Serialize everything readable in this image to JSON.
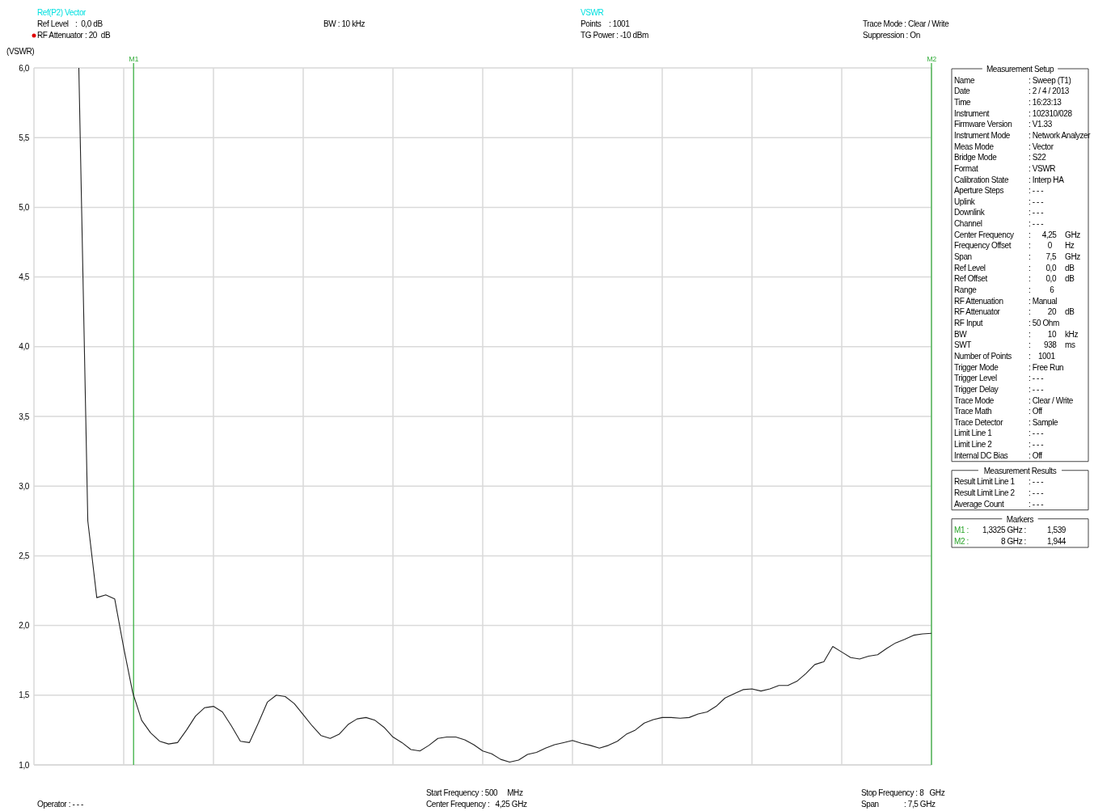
{
  "chart_data": {
    "type": "line",
    "ylabel": "(VSWR)",
    "categories": [
      null,
      null,
      null,
      null,
      null,
      null,
      null,
      null,
      null,
      null,
      null,
      null,
      null,
      null,
      null,
      null,
      null,
      null,
      null,
      null,
      null,
      null,
      null,
      null,
      null,
      null,
      null,
      null,
      null,
      null,
      null,
      null,
      null,
      null,
      null,
      null,
      null,
      null,
      null,
      null,
      null,
      null,
      null,
      null,
      null,
      null,
      null,
      null,
      null,
      null,
      null,
      null,
      null,
      null,
      null,
      null,
      null,
      null,
      null,
      null,
      null,
      null,
      null,
      null,
      null,
      null,
      null,
      null,
      null,
      null,
      null,
      null,
      null,
      null,
      null,
      null,
      null,
      null,
      null,
      null,
      null,
      null,
      null,
      null,
      null,
      null,
      null,
      null,
      null,
      null,
      null,
      null,
      null,
      null,
      null,
      null,
      null,
      null,
      null,
      null,
      null
    ],
    "series": [
      {
        "color": "#222222",
        "values": [
          null,
          null,
          null,
          null,
          null,
          6.0,
          2.75,
          2.2,
          2.22,
          2.19,
          1.84,
          1.52,
          1.32,
          1.23,
          1.17,
          1.15,
          1.16,
          1.25,
          1.35,
          1.41,
          1.42,
          1.38,
          1.28,
          1.17,
          1.16,
          1.3,
          1.45,
          1.5,
          1.49,
          1.44,
          1.36,
          1.28,
          1.21,
          1.19,
          1.22,
          1.29,
          1.33,
          1.34,
          1.32,
          1.27,
          1.2,
          1.16,
          1.11,
          1.1,
          1.14,
          1.19,
          1.2,
          1.2,
          1.18,
          1.145,
          1.1,
          1.08,
          1.04,
          1.02,
          1.035,
          1.075,
          1.09,
          1.12,
          1.145,
          1.16,
          1.175,
          1.155,
          1.14,
          1.12,
          1.14,
          1.17,
          1.22,
          1.25,
          1.3,
          1.325,
          1.34,
          1.34,
          1.335,
          1.34,
          1.365,
          1.38,
          1.42,
          1.48,
          1.51,
          1.54,
          1.545,
          1.53,
          1.545,
          1.57,
          1.57,
          1.6,
          1.655,
          1.72,
          1.74,
          1.85,
          1.81,
          1.77,
          1.76,
          1.78,
          1.79,
          1.835,
          1.875,
          1.9,
          1.93,
          1.94,
          1.944
        ]
      }
    ],
    "ylim": [
      1,
      6
    ],
    "yticks": [
      {
        "value": 1,
        "label": "1,0"
      },
      {
        "value": 1.5,
        "label": "1,5"
      },
      {
        "value": 2,
        "label": "2,0"
      },
      {
        "value": 2.5,
        "label": "2,5"
      },
      {
        "value": 3,
        "label": "3,0"
      },
      {
        "value": 3.5,
        "label": "3,5"
      },
      {
        "value": 4,
        "label": "4,0"
      },
      {
        "value": 4.5,
        "label": "4,5"
      },
      {
        "value": 5,
        "label": "5,0"
      },
      {
        "value": 5.5,
        "label": "5,5"
      },
      {
        "value": 6,
        "label": "6,0"
      }
    ],
    "tick_labels": "y",
    "grid": true,
    "marker": "none",
    "line_style": "solid",
    "annotations": [
      "Ref(P2) Vector",
      "Ref Level\t:  0,0 dB",
      "RF Attenuator : 20  dB",
      "BW : 10 kHz",
      "VSWR",
      "Points\t: 1001",
      "TG Power : -10 dBm",
      "Trace Mode : Clear / Write",
      "Suppression : On",
      "Operator : - - -",
      "Start Frequency\t: 500     MHz",
      "Center Frequency :   4,25 GHz",
      "Stop Frequency : 8   GHz",
      "Span\t: 7,5 GHz",
      "M1",
      "M2",
      "Measurement Setup",
      "Name\t: Sweep (T1)",
      "Date\t: 2 / 4 / 2013",
      "Time\t: 16:23:13",
      "Instrument\t: 102310/028",
      "Firmware Version\t: V1.33",
      "Instrument Mode\t: Network Analyzer",
      "Meas Mode\t: Vector",
      "Bridge Mode\t: S22",
      "Format\t: VSWR",
      "Calibration State\t: Interp HA",
      "Aperture Steps\t: - - -",
      "Uplink\t: - - -",
      "Downlink\t: - - -",
      "Channel\t: - - -",
      "Center Frequency\t:      4,25\tGHz",
      "Frequency Offset\t:         0\tHz",
      "Span\t:        7,5\tGHz",
      "Ref Level\t:        0,0\tdB",
      "Ref Offset\t:        0,0\tdB",
      "Range\t:          6",
      "RF Attenuation\t: Manual",
      "RF Attenuator\t:         20\tdB",
      "RF Input\t: 50 Ohm",
      "BW\t:         10\tkHz",
      "SWT\t:       938\tms",
      "Number of Points\t:    1001",
      "Trigger Mode\t: Free Run",
      "Trigger Level\t: - - -",
      "Trigger Delay\t: - - -",
      "Trace Mode\t: Clear / Write",
      "Trace Math\t: Off",
      "Trace Detector\t: Sample",
      "Limit Line 1\t: - - -",
      "Limit Line 2\t: - - -",
      "Internal DC Bias\t: Off",
      "Measurement Results",
      "Result Limit Line 1\t: - - -",
      "Result Limit Line 2\t: - - -",
      "Average Count\t: - - -",
      "Markers",
      "M1 :\t1,3325 GHz :\t1,539",
      "M2 :\t8 GHz :\t1,944"
    ]
  }
}
